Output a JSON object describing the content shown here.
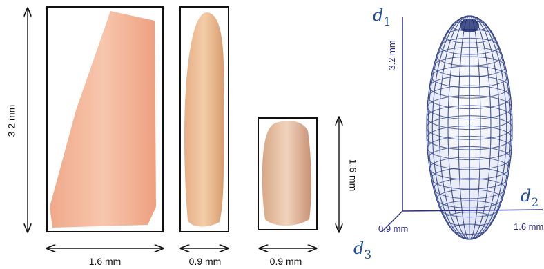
{
  "grains": [
    {
      "height_label": "3.2 mm",
      "width_label": "1.6 mm"
    },
    {
      "width_label": "0.9 mm"
    },
    {
      "height_label": "1.6 mm",
      "width_label": "0.9 mm"
    }
  ],
  "ellipsoid": {
    "axis_1": {
      "symbol": "d",
      "index": "1",
      "length_label": "3.2 mm"
    },
    "axis_2": {
      "symbol": "d",
      "index": "2",
      "length_label": "1.6 mm"
    },
    "axis_3": {
      "symbol": "d",
      "index": "3",
      "length_label": "0.9 mm"
    }
  }
}
